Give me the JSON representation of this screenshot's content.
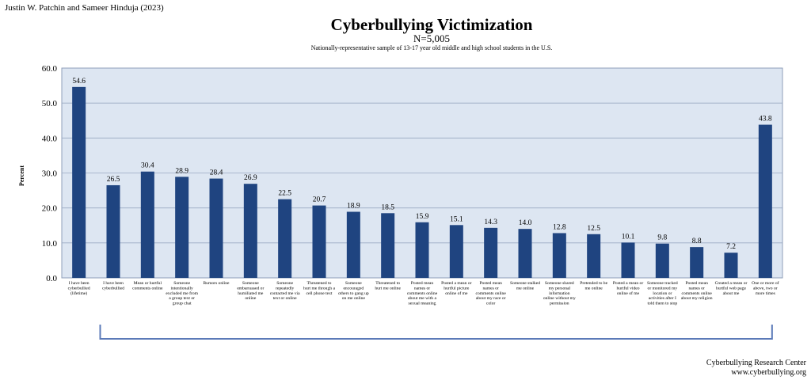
{
  "header": {
    "author": "Justin W. Patchin and Sameer Hinduja (2023)"
  },
  "footer": {
    "line1": "Cyberbullying Research Center",
    "line2": "www.cyberbullying.org"
  },
  "colors": {
    "bar": "#1f4480",
    "plot_bg": "#dde6f2",
    "grid": "#9aa9c2",
    "bracket": "#5b7ab8"
  },
  "chart_data": {
    "type": "bar",
    "title": "Cyberbullying Victimization",
    "subtitle": "N=5,005",
    "note": "Nationally-representative sample of 13-17 year old middle and high school students in the U.S.",
    "xlabel": "",
    "ylabel": "Percent",
    "ylim": [
      0,
      60
    ],
    "yticks": [
      "0.0",
      "10.0",
      "20.0",
      "30.0",
      "40.0",
      "50.0",
      "60.0"
    ],
    "grid": true,
    "categories": [
      "I have been cyberbullied (lifetime)",
      "I have been cyberbullied",
      "Mean or hurtful comments online",
      "Someone intentionally excluded me from a group text or group chat",
      "Rumors online",
      "Someone embarrassed or humiliated me online",
      "Someone repeatedly contacted me via text or online",
      "Threatened to hurt me through a cell phone text",
      "Someone encouraged others to gang up on me online",
      "Threatened to hurt me online",
      "Posted mean names or comments online about me with a sexual meaning",
      "Posted a mean or hurtful picture online of me",
      "Posted mean names or comments online about my race or color",
      "Someone stalked me online",
      "Someone shared my personal information online without my permission",
      "Pretended to be me online",
      "Posted a mean or hurtful video online of me",
      "Someone tracked or monitored my location or activities after I told them to stop",
      "Posted mean names or comments online about my religion",
      "Created a mean or hurtful web page about me",
      "One or more of above, two or more times"
    ],
    "category_lines": [
      [
        "I have been",
        "cyberbullied",
        "(lifetime)"
      ],
      [
        "I have been",
        "cyberbullied"
      ],
      [
        "Mean or hurtful",
        "comments online"
      ],
      [
        "Someone",
        "intentionally",
        "excluded me from",
        "a group text or",
        "group chat"
      ],
      [
        "Rumors online"
      ],
      [
        "Someone",
        "embarrassed or",
        "humiliated me",
        "online"
      ],
      [
        "Someone",
        "repeatedly",
        "contacted me via",
        "text or online"
      ],
      [
        "Threatened    to",
        "hurt me through a",
        "cell phone text"
      ],
      [
        "Someone",
        "encouraged",
        "others to gang up",
        "on me online"
      ],
      [
        "Threatened    to",
        "hurt me online"
      ],
      [
        "Posted mean",
        "names or",
        "comments online",
        "about me with a",
        "sexual meaning"
      ],
      [
        "Posted a mean or",
        "hurtful picture",
        "online of me"
      ],
      [
        "Posted mean",
        "names or",
        "comments online",
        "about my race or",
        "color"
      ],
      [
        "Someone stalked",
        "me online"
      ],
      [
        "Someone shared",
        "my personal",
        "information",
        "online without my",
        "permission"
      ],
      [
        "Pretended to be",
        "me online"
      ],
      [
        "Posted a mean or",
        "hurtful video",
        "online of me"
      ],
      [
        "Someone tracked",
        "or monitored my",
        "location or",
        "activities after I",
        "told them to stop"
      ],
      [
        "Posted mean",
        "names or",
        "comments online",
        "about my religion"
      ],
      [
        "Created a mean or",
        "hurtful web page",
        "about me"
      ],
      [
        "One or more of",
        "above,    two or",
        "more times"
      ]
    ],
    "values": [
      54.6,
      26.5,
      30.4,
      28.9,
      28.4,
      26.9,
      22.5,
      20.7,
      18.9,
      18.5,
      15.9,
      15.1,
      14.3,
      14.0,
      12.8,
      12.5,
      10.1,
      9.8,
      8.8,
      7.2,
      43.8
    ],
    "data_labels": [
      "54.6",
      "26.5",
      "30.4",
      "28.9",
      "28.4",
      "26.9",
      "22.5",
      "20.7",
      "18.9",
      "18.5",
      "15.9",
      "15.1",
      "14.3",
      "14.0",
      "12.8",
      "12.5",
      "10.1",
      "9.8",
      "8.8",
      "7.2",
      "43.8"
    ],
    "annotations": {
      "bracket": "spans bars 2 through 21 (previous 30 days)"
    }
  }
}
